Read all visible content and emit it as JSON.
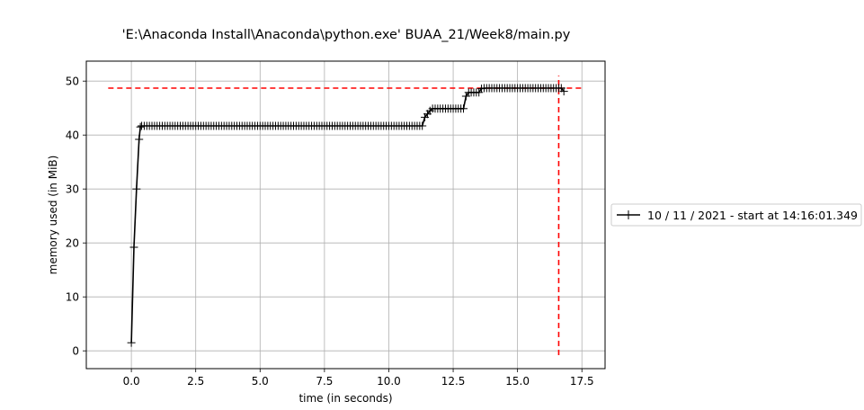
{
  "chart_data": {
    "type": "line",
    "title": "'E:\\Anaconda Install\\Anaconda\\python.exe' BUAA_21/Week8/main.py",
    "xlabel": "time (in seconds)",
    "ylabel": "memory used (in MiB)",
    "xlim": [
      -1.75,
      18.4
    ],
    "ylim": [
      -3.3,
      53.7
    ],
    "xticks": [
      0.0,
      2.5,
      5.0,
      7.5,
      10.0,
      12.5,
      15.0,
      17.5
    ],
    "xtick_labels": [
      "0.0",
      "2.5",
      "5.0",
      "7.5",
      "10.0",
      "12.5",
      "15.0",
      "17.5"
    ],
    "yticks": [
      0,
      10,
      20,
      30,
      40,
      50
    ],
    "ytick_labels": [
      "0",
      "10",
      "20",
      "30",
      "40",
      "50"
    ],
    "grid": true,
    "legend_position": "right",
    "marker": "+",
    "series": [
      {
        "name": "10 / 11 / 2021 - start at 14:16:01.349",
        "color": "#000000",
        "x": [
          0.0,
          0.1,
          0.2,
          0.3,
          0.35,
          0.4,
          0.5,
          0.6,
          0.7,
          0.8,
          0.9,
          1.0,
          1.1,
          1.2,
          1.3,
          1.4,
          1.5,
          1.6,
          1.7,
          1.8,
          1.9,
          2.0,
          2.1,
          2.2,
          2.3,
          2.4,
          2.5,
          2.6,
          2.7,
          2.8,
          2.9,
          3.0,
          3.1,
          3.2,
          3.3,
          3.4,
          3.5,
          3.6,
          3.7,
          3.8,
          3.9,
          4.0,
          4.1,
          4.2,
          4.3,
          4.4,
          4.5,
          4.6,
          4.7,
          4.8,
          4.9,
          5.0,
          5.1,
          5.2,
          5.3,
          5.4,
          5.5,
          5.6,
          5.7,
          5.8,
          5.9,
          6.0,
          6.1,
          6.2,
          6.3,
          6.4,
          6.5,
          6.6,
          6.7,
          6.8,
          6.9,
          7.0,
          7.1,
          7.2,
          7.3,
          7.4,
          7.5,
          7.6,
          7.7,
          7.8,
          7.9,
          8.0,
          8.1,
          8.2,
          8.3,
          8.4,
          8.5,
          8.6,
          8.7,
          8.8,
          8.9,
          9.0,
          9.1,
          9.2,
          9.3,
          9.4,
          9.5,
          9.6,
          9.7,
          9.8,
          9.9,
          10.0,
          10.1,
          10.2,
          10.3,
          10.4,
          10.5,
          10.6,
          10.7,
          10.8,
          10.9,
          11.0,
          11.1,
          11.2,
          11.3,
          11.4,
          11.5,
          11.6,
          11.7,
          11.8,
          11.9,
          12.0,
          12.1,
          12.2,
          12.3,
          12.4,
          12.5,
          12.6,
          12.7,
          12.8,
          12.9,
          13.0,
          13.1,
          13.2,
          13.3,
          13.4,
          13.5,
          13.6,
          13.7,
          13.8,
          13.9,
          14.0,
          14.1,
          14.2,
          14.3,
          14.4,
          14.5,
          14.6,
          14.7,
          14.8,
          14.9,
          15.0,
          15.1,
          15.2,
          15.3,
          15.4,
          15.5,
          15.6,
          15.7,
          15.8,
          15.9,
          16.0,
          16.1,
          16.2,
          16.3,
          16.4,
          16.5,
          16.6,
          16.7,
          16.8
        ],
        "y": [
          1.5,
          19.2,
          30.0,
          39.2,
          41.5,
          41.7,
          41.7,
          41.7,
          41.7,
          41.7,
          41.7,
          41.7,
          41.7,
          41.7,
          41.7,
          41.7,
          41.7,
          41.7,
          41.7,
          41.7,
          41.7,
          41.7,
          41.7,
          41.7,
          41.7,
          41.7,
          41.7,
          41.7,
          41.7,
          41.7,
          41.7,
          41.7,
          41.7,
          41.7,
          41.7,
          41.7,
          41.7,
          41.7,
          41.7,
          41.7,
          41.7,
          41.7,
          41.7,
          41.7,
          41.7,
          41.7,
          41.7,
          41.7,
          41.7,
          41.7,
          41.7,
          41.7,
          41.7,
          41.7,
          41.7,
          41.7,
          41.7,
          41.7,
          41.7,
          41.7,
          41.7,
          41.7,
          41.7,
          41.7,
          41.7,
          41.7,
          41.7,
          41.7,
          41.7,
          41.7,
          41.7,
          41.7,
          41.7,
          41.7,
          41.7,
          41.7,
          41.7,
          41.7,
          41.7,
          41.7,
          41.7,
          41.7,
          41.7,
          41.7,
          41.7,
          41.7,
          41.7,
          41.7,
          41.7,
          41.7,
          41.7,
          41.7,
          41.7,
          41.7,
          41.7,
          41.7,
          41.7,
          41.7,
          41.7,
          41.7,
          41.7,
          41.7,
          41.7,
          41.7,
          41.7,
          41.7,
          41.7,
          41.7,
          41.7,
          41.7,
          41.7,
          41.7,
          41.7,
          41.7,
          41.7,
          43.3,
          43.9,
          44.5,
          44.9,
          44.9,
          44.9,
          44.9,
          44.9,
          44.9,
          44.9,
          44.9,
          44.9,
          44.9,
          44.9,
          44.9,
          44.9,
          47.2,
          47.9,
          47.9,
          47.9,
          47.9,
          47.9,
          48.6,
          48.7,
          48.7,
          48.7,
          48.7,
          48.7,
          48.7,
          48.7,
          48.7,
          48.7,
          48.7,
          48.7,
          48.7,
          48.7,
          48.7,
          48.7,
          48.7,
          48.7,
          48.7,
          48.7,
          48.7,
          48.7,
          48.7,
          48.7,
          48.7,
          48.7,
          48.7,
          48.7,
          48.7,
          48.7,
          48.7,
          48.7,
          48.1
        ]
      }
    ],
    "annotations": {
      "max_memory_line_y": 48.7,
      "max_memory_line_x_range": [
        -0.9,
        17.5
      ],
      "max_time_line_x": 16.6,
      "max_time_line_y_range": [
        -0.8,
        51.0
      ],
      "line_color": "#ff0000",
      "line_style": "dashed"
    }
  }
}
